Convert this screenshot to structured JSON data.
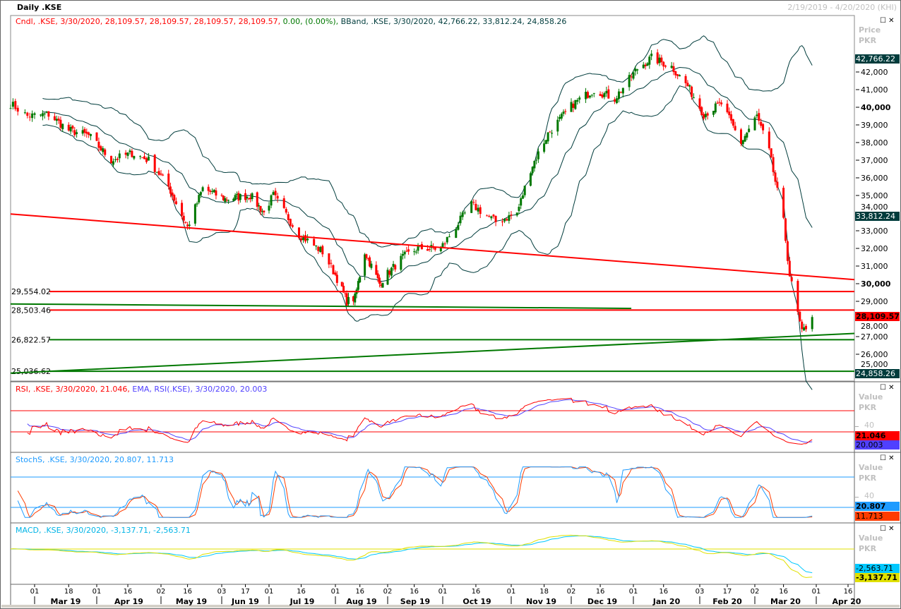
{
  "header": {
    "title": "Daily .KSE",
    "range": "2/19/2019 - 4/20/2020 (KHI)"
  },
  "legends": {
    "candle_red": "Cndl, .KSE, 3/30/2020, 28,109.57, 28,109.57, 28,109.57, 28,109.57,",
    "candle_change": "0.00, (0.00%),",
    "bband": "BBand, .KSE, 3/30/2020, 42,766.22, 33,812.24, 24,858.26",
    "rsi": "RSI, .KSE, 3/30/2020, 21.046,",
    "ema": "EMA, RSI(.KSE), 3/30/2020, 20.003",
    "stoch": "StochS, .KSE, 3/30/2020, 20.807, 11.713",
    "macd": "MACD, .KSE, 3/30/2020, -3,137.71, -2,563.71"
  },
  "panels": {
    "price": {
      "title": "Price",
      "unit": "PKR"
    },
    "rsi": {
      "title": "Value",
      "unit": "PKR",
      "tick": "40"
    },
    "stoch": {
      "title": "Value",
      "unit": "PKR",
      "tick": "40"
    },
    "macd": {
      "title": "Value",
      "unit": "PKR"
    }
  },
  "badges": {
    "bb_upper": "42,766.22",
    "bb_mid": "33,812.24",
    "bb_lower": "24,858.26",
    "last": "28,109.57",
    "rsi": "21.046",
    "rsi_ema": "20.003",
    "stoch_k": "20.807",
    "stoch_d": "11.713",
    "macd_signal": "-2,563.71",
    "macd": "-3,137.71"
  },
  "colors": {
    "up": "#007800",
    "down": "#ff0000",
    "band": "#003c3c",
    "rsi": "#ff0000",
    "ema": "#5040ff",
    "stoch_k": "#1e9bff",
    "stoch_d": "#ff3c00",
    "macd": "#e0e000",
    "macd_signal": "#00c8ff"
  },
  "chart_data": {
    "type": "candlestick",
    "title": "Daily .KSE",
    "ylabel": "Price PKR",
    "ylim": [
      24500,
      43300
    ],
    "price_ticks": [
      "25,000",
      "26,000",
      "27,000",
      "28,000",
      "29,000",
      "30,000",
      "31,000",
      "32,000",
      "33,000",
      "34,000",
      "35,000",
      "36,000",
      "37,000",
      "38,000",
      "39,000",
      "40,000",
      "41,000",
      "42,000"
    ],
    "close_keypoints": [
      [
        "2019-02-19",
        40200
      ],
      [
        "2019-02-26",
        39500
      ],
      [
        "2019-03-08",
        39600
      ],
      [
        "2019-03-18",
        38700
      ],
      [
        "2019-03-28",
        38400
      ],
      [
        "2019-04-08",
        37000
      ],
      [
        "2019-04-18",
        37400
      ],
      [
        "2019-04-26",
        37000
      ],
      [
        "2019-05-06",
        35500
      ],
      [
        "2019-05-16",
        33200
      ],
      [
        "2019-05-24",
        35400
      ],
      [
        "2019-06-05",
        34800
      ],
      [
        "2019-06-20",
        35000
      ],
      [
        "2019-06-28",
        34000
      ],
      [
        "2019-07-03",
        35000
      ],
      [
        "2019-07-15",
        32800
      ],
      [
        "2019-07-26",
        31800
      ],
      [
        "2019-08-08",
        29000
      ],
      [
        "2019-08-13",
        29200
      ],
      [
        "2019-08-19",
        31800
      ],
      [
        "2019-08-28",
        30000
      ],
      [
        "2019-09-10",
        31500
      ],
      [
        "2019-09-18",
        32000
      ],
      [
        "2019-09-30",
        32000
      ],
      [
        "2019-10-14",
        34500
      ],
      [
        "2019-10-25",
        33500
      ],
      [
        "2019-11-04",
        34000
      ],
      [
        "2019-11-11",
        36500
      ],
      [
        "2019-11-20",
        38500
      ],
      [
        "2019-12-03",
        40200
      ],
      [
        "2019-12-13",
        41000
      ],
      [
        "2019-12-23",
        40500
      ],
      [
        "2020-01-03",
        42200
      ],
      [
        "2020-01-10",
        42800
      ],
      [
        "2020-01-20",
        42300
      ],
      [
        "2020-01-28",
        41200
      ],
      [
        "2020-02-05",
        39600
      ],
      [
        "2020-02-14",
        40200
      ],
      [
        "2020-02-24",
        38000
      ],
      [
        "2020-03-03",
        39500
      ],
      [
        "2020-03-09",
        37500
      ],
      [
        "2020-03-16",
        33500
      ],
      [
        "2020-03-19",
        30500
      ],
      [
        "2020-03-25",
        27200
      ],
      [
        "2020-03-30",
        28109.57
      ]
    ],
    "horizontal_levels": [
      {
        "label": "29,554.02",
        "value": 29554.02,
        "color": "red"
      },
      {
        "label": "28,503.46",
        "value": 28503.46,
        "color": "red"
      },
      {
        "label": "26,822.57",
        "value": 26822.57,
        "color": "green"
      },
      {
        "label": "25,036.62",
        "value": 25036.62,
        "color": "green"
      }
    ],
    "trendlines": [
      {
        "color": "red",
        "from": [
          "2019-02-19",
          33950
        ],
        "to": [
          "2020-04-20",
          30230
        ]
      },
      {
        "color": "green",
        "from": [
          "2019-02-19",
          24930
        ],
        "to": [
          "2020-04-20",
          27180
        ]
      },
      {
        "color": "green",
        "from": [
          "2019-02-19",
          28850
        ],
        "to": [
          "2019-12-31",
          28600
        ]
      }
    ],
    "rsi_levels": [
      70,
      30
    ],
    "stoch_levels": [
      80,
      20
    ],
    "x_ticks": [
      [
        "2019-03-01",
        "01"
      ],
      [
        "2019-03-18",
        "18"
      ],
      [
        "2019-04-01",
        "01"
      ],
      [
        "2019-04-16",
        "16"
      ],
      [
        "2019-05-02",
        "02"
      ],
      [
        "2019-05-16",
        "16"
      ],
      [
        "2019-06-03",
        "03"
      ],
      [
        "2019-06-17",
        "17"
      ],
      [
        "2019-07-01",
        "01"
      ],
      [
        "2019-07-16",
        "16"
      ],
      [
        "2019-08-01",
        "01"
      ],
      [
        "2019-08-16",
        "16"
      ],
      [
        "2019-09-02",
        "02"
      ],
      [
        "2019-09-16",
        "16"
      ],
      [
        "2019-10-01",
        "01"
      ],
      [
        "2019-10-16",
        "16"
      ],
      [
        "2019-11-01",
        "01"
      ],
      [
        "2019-11-18",
        "18"
      ],
      [
        "2019-12-02",
        "02"
      ],
      [
        "2019-12-16",
        "16"
      ],
      [
        "2020-01-01",
        "01"
      ],
      [
        "2020-01-16",
        "16"
      ],
      [
        "2020-02-03",
        "03"
      ],
      [
        "2020-02-17",
        "17"
      ],
      [
        "2020-03-02",
        "02"
      ],
      [
        "2020-03-16",
        "16"
      ],
      [
        "2020-04-01",
        "01"
      ],
      [
        "2020-04-16",
        "16"
      ]
    ],
    "months": [
      [
        "2019-03-01",
        "Mar 19"
      ],
      [
        "2019-04-01",
        "Apr 19"
      ],
      [
        "2019-05-02",
        "May 19"
      ],
      [
        "2019-06-03",
        "Jun 19"
      ],
      [
        "2019-07-01",
        "Jul 19"
      ],
      [
        "2019-08-01",
        "Aug 19"
      ],
      [
        "2019-09-02",
        "Sep 19"
      ],
      [
        "2019-10-01",
        "Oct 19"
      ],
      [
        "2019-11-01",
        "Nov 19"
      ],
      [
        "2019-12-02",
        "Dec 19"
      ],
      [
        "2020-01-01",
        "Jan 20"
      ],
      [
        "2020-02-03",
        "Feb 20"
      ],
      [
        "2020-03-02",
        "Mar 20"
      ],
      [
        "2020-04-01",
        "Apr 20"
      ]
    ]
  }
}
